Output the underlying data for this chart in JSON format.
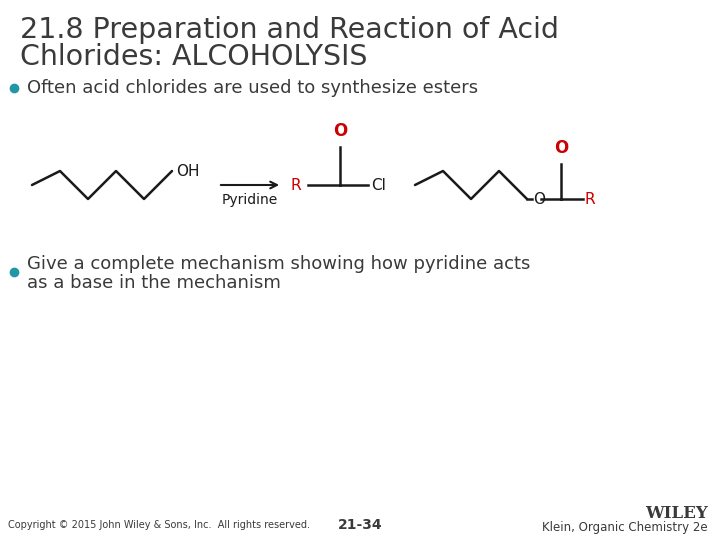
{
  "title_line1": "21.8 Preparation and Reaction of Acid",
  "title_line2": "Chlorides: ALCOHOLYSIS",
  "bullet1": "Often acid chlorides are used to synthesize esters",
  "bullet2_line1": "Give a complete mechanism showing how pyridine acts",
  "bullet2_line2": "as a base in the mechanism",
  "footer_left": "Copyright © 2015 John Wiley & Sons, Inc.  All rights reserved.",
  "footer_center": "21-34",
  "footer_right_top": "WILEY",
  "footer_right_bottom": "Klein, Organic Chemistry 2e",
  "bg_color": "#ffffff",
  "title_color": "#3a3a3a",
  "bullet_color": "#3a3a3a",
  "bullet_dot_color": "#2196A6",
  "red_color": "#cc0000",
  "black_color": "#1a1a1a",
  "footer_color": "#3a3a3a"
}
